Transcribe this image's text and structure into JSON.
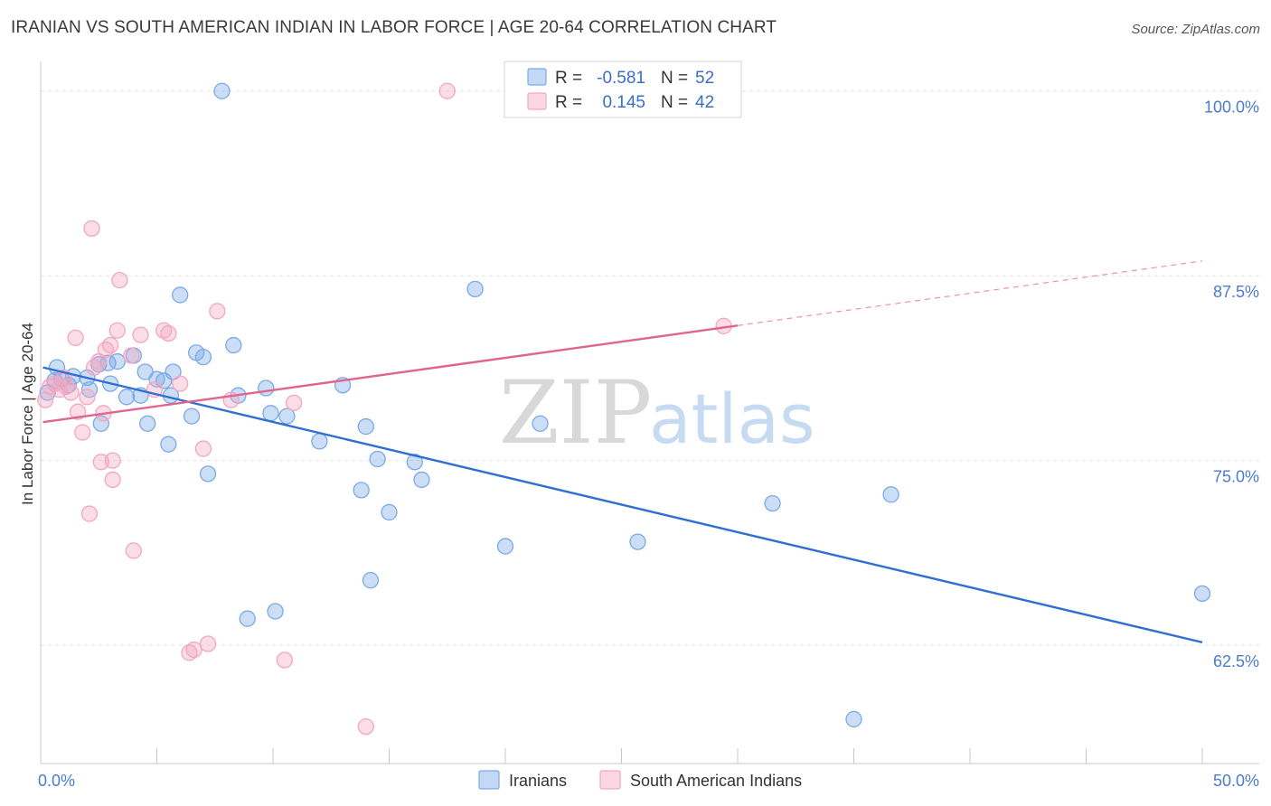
{
  "title": "IRANIAN VS SOUTH AMERICAN INDIAN IN LABOR FORCE | AGE 20-64 CORRELATION CHART",
  "source": "Source: ZipAtlas.com",
  "watermark": {
    "zip": "ZIP",
    "atlas": "atlas"
  },
  "chart_data": {
    "type": "scatter",
    "ylabel": "In Labor Force | Age 20-64",
    "xlabel": "",
    "xlim": [
      0,
      50
    ],
    "ylim": [
      54.5,
      102
    ],
    "x_tick_labels": [
      {
        "value": 0,
        "label": "0.0%"
      },
      {
        "value": 50,
        "label": "50.0%"
      }
    ],
    "y_ticks": [
      {
        "value": 100,
        "label": "100.0%"
      },
      {
        "value": 87.5,
        "label": "87.5%"
      },
      {
        "value": 75,
        "label": "75.0%"
      },
      {
        "value": 62.5,
        "label": "62.5%"
      }
    ],
    "grid": true,
    "legend_position": "top-center",
    "series": [
      {
        "name": "Iranians",
        "color": "#7aa9e8",
        "line_color": "#2e6fd1",
        "r_label": "R =",
        "r_value": "-0.581",
        "n_label": "N =",
        "n_value": "52",
        "trend": {
          "x0": 0.1,
          "y0": 81.3,
          "x1": 50,
          "y1": 62.7,
          "solid_until": 50
        },
        "points": [
          [
            0.3,
            79.6
          ],
          [
            0.6,
            80.4
          ],
          [
            0.7,
            81.3
          ],
          [
            0.9,
            80.5
          ],
          [
            1.2,
            80.1
          ],
          [
            1.4,
            80.7
          ],
          [
            2.0,
            80.6
          ],
          [
            2.1,
            79.8
          ],
          [
            2.5,
            81.5
          ],
          [
            2.6,
            77.5
          ],
          [
            2.9,
            81.6
          ],
          [
            3.0,
            80.2
          ],
          [
            3.3,
            81.7
          ],
          [
            3.7,
            79.3
          ],
          [
            4.0,
            82.1
          ],
          [
            4.3,
            79.4
          ],
          [
            4.5,
            81.0
          ],
          [
            4.6,
            77.5
          ],
          [
            5.0,
            80.5
          ],
          [
            5.3,
            80.4
          ],
          [
            5.5,
            76.1
          ],
          [
            5.6,
            79.4
          ],
          [
            5.7,
            81.0
          ],
          [
            6.0,
            86.2
          ],
          [
            6.5,
            78.0
          ],
          [
            6.7,
            82.3
          ],
          [
            7.0,
            82.0
          ],
          [
            7.2,
            74.1
          ],
          [
            7.8,
            100.0
          ],
          [
            8.3,
            82.8
          ],
          [
            8.5,
            79.4
          ],
          [
            8.9,
            64.3
          ],
          [
            9.7,
            79.9
          ],
          [
            9.9,
            78.2
          ],
          [
            10.1,
            64.8
          ],
          [
            10.6,
            78.0
          ],
          [
            12.0,
            76.3
          ],
          [
            13.0,
            80.1
          ],
          [
            13.8,
            73.0
          ],
          [
            14.0,
            77.3
          ],
          [
            14.2,
            66.9
          ],
          [
            14.5,
            75.1
          ],
          [
            15.0,
            71.5
          ],
          [
            16.1,
            74.9
          ],
          [
            16.4,
            73.7
          ],
          [
            18.7,
            86.6
          ],
          [
            20.0,
            69.2
          ],
          [
            21.5,
            77.5
          ],
          [
            25.7,
            69.5
          ],
          [
            31.5,
            72.1
          ],
          [
            35.0,
            57.5
          ],
          [
            36.6,
            72.7
          ],
          [
            50.0,
            66.0
          ]
        ]
      },
      {
        "name": "South American Indians",
        "color": "#f3a6c0",
        "line_color": "#e0648f",
        "r_label": "R =",
        "r_value": "0.145",
        "n_label": "N =",
        "n_value": "42",
        "trend": {
          "x0": 0.1,
          "y0": 77.6,
          "x1": 50,
          "y1": 88.5,
          "solid_until": 30
        },
        "points": [
          [
            0.2,
            79.1
          ],
          [
            0.4,
            80.0
          ],
          [
            0.6,
            80.2
          ],
          [
            0.8,
            79.8
          ],
          [
            1.0,
            80.6
          ],
          [
            1.1,
            80.0
          ],
          [
            1.3,
            79.6
          ],
          [
            1.5,
            83.3
          ],
          [
            1.6,
            78.3
          ],
          [
            1.8,
            76.9
          ],
          [
            2.0,
            79.3
          ],
          [
            2.1,
            71.4
          ],
          [
            2.2,
            90.7
          ],
          [
            2.3,
            81.3
          ],
          [
            2.5,
            81.7
          ],
          [
            2.6,
            74.9
          ],
          [
            2.7,
            78.2
          ],
          [
            2.8,
            82.5
          ],
          [
            3.0,
            82.8
          ],
          [
            3.1,
            75.0
          ],
          [
            3.1,
            73.7
          ],
          [
            3.3,
            83.8
          ],
          [
            3.4,
            87.2
          ],
          [
            3.9,
            82.1
          ],
          [
            4.0,
            68.9
          ],
          [
            4.3,
            83.5
          ],
          [
            4.9,
            79.8
          ],
          [
            5.3,
            83.8
          ],
          [
            5.5,
            83.6
          ],
          [
            6.0,
            80.2
          ],
          [
            6.4,
            62.0
          ],
          [
            6.6,
            62.2
          ],
          [
            7.0,
            75.8
          ],
          [
            7.2,
            62.6
          ],
          [
            7.6,
            85.1
          ],
          [
            8.2,
            79.1
          ],
          [
            10.5,
            61.5
          ],
          [
            10.9,
            78.9
          ],
          [
            14.0,
            57.0
          ],
          [
            17.5,
            100.0
          ],
          [
            22.5,
            100.0
          ],
          [
            29.4,
            84.1
          ]
        ]
      }
    ]
  }
}
